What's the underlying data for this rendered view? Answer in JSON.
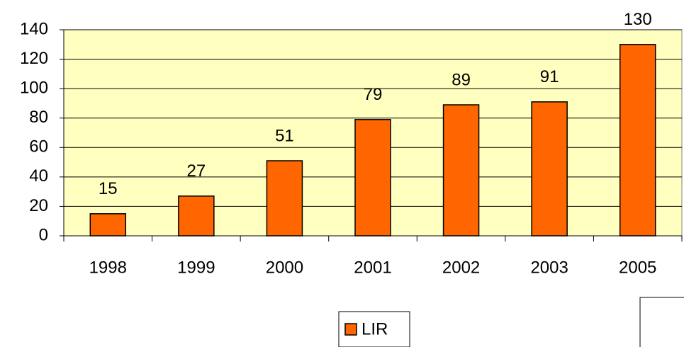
{
  "chart_data": {
    "type": "bar",
    "categories": [
      "1998",
      "1999",
      "2000",
      "2001",
      "2002",
      "2003",
      "2005"
    ],
    "series": [
      {
        "name": "LIR",
        "color": "#ff6600",
        "values": [
          15,
          27,
          51,
          79,
          89,
          91,
          130
        ]
      }
    ],
    "ylim": [
      0,
      140
    ],
    "yticks": [
      0,
      20,
      40,
      60,
      80,
      100,
      120,
      140
    ],
    "grid": true,
    "plot_background": "#ffffc0",
    "legend": "bottom"
  }
}
